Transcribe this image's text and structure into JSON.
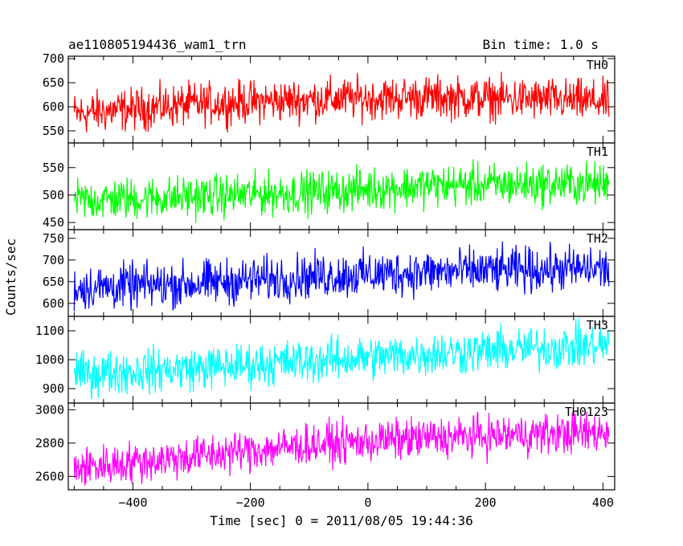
{
  "header": {
    "title": "ae110805194436_wam1_trn",
    "bin_time": "Bin time: 1.0 s"
  },
  "ylabel": "Counts/sec",
  "xlabel": "Time [sec] 0 = 2011/08/05 19:44:36",
  "chart_data": {
    "type": "line",
    "x_range": [
      -510,
      420
    ],
    "x_ticks": [
      -400,
      -200,
      0,
      200,
      400
    ],
    "x_tick_labels": [
      "−400",
      "−200",
      "0",
      "200",
      "400"
    ],
    "bin_time_s": 1.0,
    "panels": [
      {
        "name": "TH0",
        "color": "#ff0000",
        "ylim": [
          525,
          705
        ],
        "yticks": [
          550,
          600,
          650,
          700
        ],
        "trend": [
          [
            -500,
            585
          ],
          [
            -300,
            605
          ],
          [
            -100,
            615
          ],
          [
            100,
            620
          ],
          [
            300,
            615
          ],
          [
            410,
            610
          ]
        ],
        "amplitude": 32
      },
      {
        "name": "TH1",
        "color": "#00ff00",
        "ylim": [
          437,
          595
        ],
        "yticks": [
          450,
          500,
          550
        ],
        "trend": [
          [
            -500,
            490
          ],
          [
            -300,
            497
          ],
          [
            -100,
            505
          ],
          [
            100,
            517
          ],
          [
            300,
            520
          ],
          [
            410,
            520
          ]
        ],
        "amplitude": 28
      },
      {
        "name": "TH2",
        "color": "#0000ff",
        "ylim": [
          570,
          770
        ],
        "yticks": [
          600,
          650,
          700,
          750
        ],
        "trend": [
          [
            -500,
            635
          ],
          [
            -300,
            645
          ],
          [
            -100,
            662
          ],
          [
            100,
            672
          ],
          [
            300,
            678
          ],
          [
            410,
            680
          ]
        ],
        "amplitude": 38
      },
      {
        "name": "TH3",
        "color": "#00ffff",
        "ylim": [
          850,
          1150
        ],
        "yticks": [
          900,
          1000,
          1100
        ],
        "trend": [
          [
            -500,
            950
          ],
          [
            -300,
            970
          ],
          [
            -100,
            995
          ],
          [
            100,
            1020
          ],
          [
            300,
            1040
          ],
          [
            410,
            1050
          ]
        ],
        "amplitude": 55
      },
      {
        "name": "TH0123",
        "color": "#ff00ff",
        "ylim": [
          2520,
          3040
        ],
        "yticks": [
          2600,
          2800,
          3000
        ],
        "trend": [
          [
            -500,
            2650
          ],
          [
            -300,
            2720
          ],
          [
            -100,
            2790
          ],
          [
            100,
            2830
          ],
          [
            300,
            2855
          ],
          [
            410,
            2865
          ]
        ],
        "amplitude": 90
      }
    ]
  }
}
